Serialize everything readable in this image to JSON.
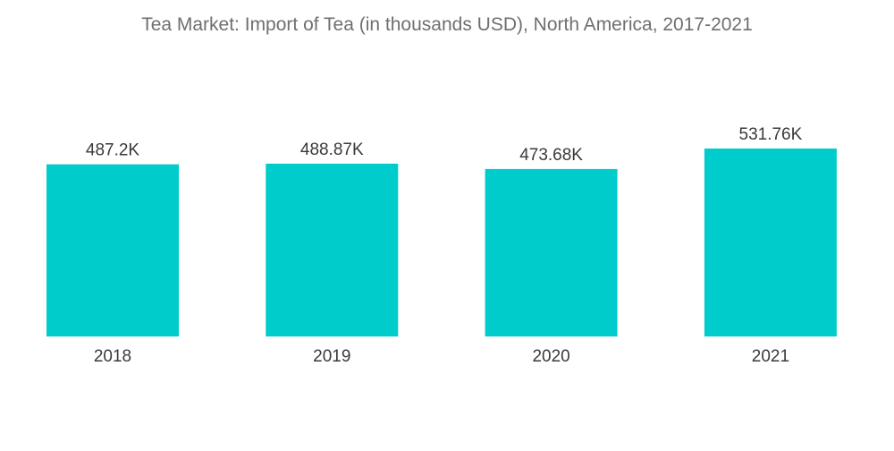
{
  "chart_data": {
    "type": "bar",
    "title": "Tea Market: Import of Tea (in thousands USD), North America, 2017-2021",
    "categories": [
      "2018",
      "2019",
      "2020",
      "2021"
    ],
    "values": [
      487.2,
      488.87,
      473.68,
      531.76
    ],
    "value_labels": [
      "487.2K",
      "488.87K",
      "473.68K",
      "531.76K"
    ],
    "xlabel": "",
    "ylabel": "",
    "ylim": [
      0,
      531.76
    ],
    "grid": false,
    "legend": "none",
    "bar_color": "#00cccc"
  }
}
